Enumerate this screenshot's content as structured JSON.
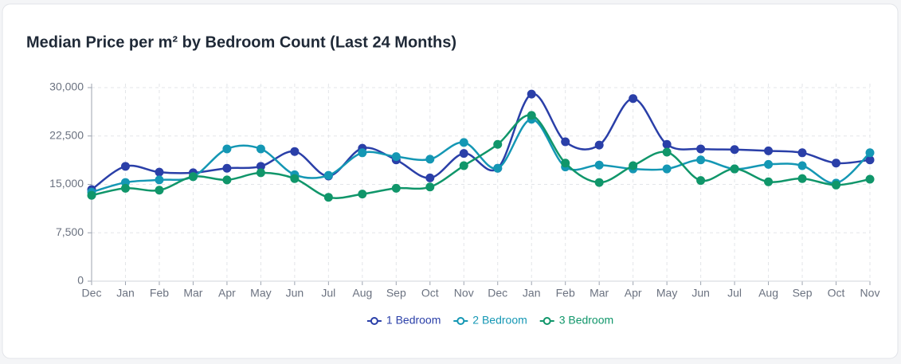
{
  "chart_data": {
    "type": "line",
    "title": "Median Price per m² by Bedroom Count (Last 24 Months)",
    "categories": [
      "Dec",
      "Jan",
      "Feb",
      "Mar",
      "Apr",
      "May",
      "Jun",
      "Jul",
      "Aug",
      "Sep",
      "Oct",
      "Nov",
      "Dec",
      "Jan",
      "Feb",
      "Mar",
      "Apr",
      "May",
      "Jun",
      "Jul",
      "Aug",
      "Sep",
      "Oct",
      "Nov"
    ],
    "series": [
      {
        "name": "1 Bedroom",
        "color": "#2a3fa8",
        "values": [
          14200,
          17800,
          16900,
          16800,
          17500,
          17800,
          20100,
          16300,
          20600,
          18800,
          16000,
          19800,
          17500,
          29000,
          21600,
          21100,
          28300,
          21200,
          20500,
          20400,
          20200,
          19900,
          18300,
          18800
        ]
      },
      {
        "name": "2 Bedroom",
        "color": "#1497b4",
        "values": [
          13800,
          15300,
          15700,
          16200,
          20500,
          20500,
          16500,
          16400,
          19900,
          19300,
          18900,
          21500,
          17500,
          25100,
          17700,
          18000,
          17400,
          17400,
          18800,
          17400,
          18100,
          17900,
          15200,
          19900
        ]
      },
      {
        "name": "3 Bedroom",
        "color": "#10966a",
        "values": [
          13300,
          14400,
          14100,
          16200,
          15700,
          16800,
          15900,
          13000,
          13500,
          14400,
          14600,
          17900,
          21200,
          25700,
          18300,
          15300,
          17900,
          20000,
          15600,
          17400,
          15400,
          15900,
          14900,
          15800
        ]
      }
    ],
    "ylim": [
      0,
      30000
    ],
    "yticks": [
      0,
      {
        "value": 7500,
        "label": "7,500"
      },
      {
        "value": 15000,
        "label": "15,000"
      },
      {
        "value": 22500,
        "label": "22,500"
      },
      {
        "value": 30000,
        "label": "30,000"
      }
    ],
    "grid": true,
    "legend": "bottom"
  }
}
